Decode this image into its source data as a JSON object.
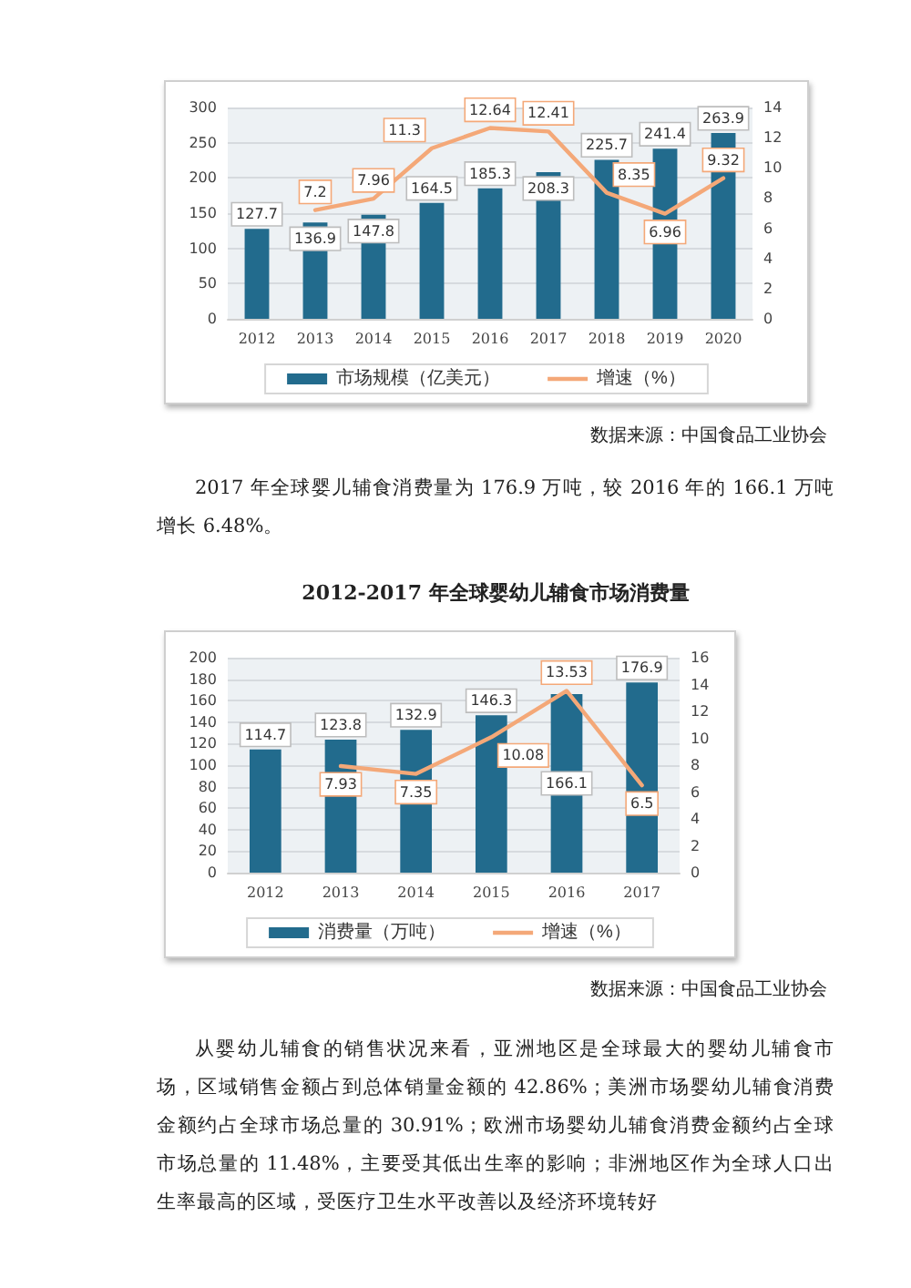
{
  "chart_data": [
    {
      "type": "bar",
      "categories": [
        "2012",
        "2013",
        "2014",
        "2015",
        "2016",
        "2017",
        "2018",
        "2019",
        "2020"
      ],
      "series": [
        {
          "name": "市场规模（亿美元）",
          "color": "#226b8d",
          "values": [
            127.7,
            136.9,
            147.8,
            164.5,
            185.3,
            208.3,
            225.7,
            241.4,
            263.9
          ]
        },
        {
          "name": "增速（%）",
          "type": "line",
          "axis": "y2",
          "color": "#f4a878",
          "values": [
            null,
            7.2,
            7.96,
            11.3,
            12.64,
            12.41,
            8.35,
            6.96,
            9.32
          ]
        }
      ],
      "ylim": [
        0,
        300
      ],
      "yticks": [
        0,
        50,
        100,
        150,
        200,
        250,
        300
      ],
      "y2lim": [
        0,
        14
      ],
      "y2ticks": [
        0,
        2,
        4,
        6,
        8,
        10,
        12,
        14
      ],
      "grid": "y",
      "legend": "bottom",
      "marker": "none",
      "data_labels": true,
      "annotations": [
        "数据来源：中国食品工业协会"
      ]
    },
    {
      "type": "other",
      "annotations": [
        "2017 年全球婴儿辅食消费量为 176.9 万吨，较 2016 年的 166.1 万吨增长 6.48%。"
      ]
    },
    {
      "type": "bar",
      "title": "2012-2017 年全球婴幼儿辅食市场消费量",
      "categories": [
        "2012",
        "2013",
        "2014",
        "2015",
        "2016",
        "2017"
      ],
      "series": [
        {
          "name": "消费量（万吨）",
          "color": "#226b8d",
          "values": [
            114.7,
            123.8,
            132.9,
            146.3,
            166.1,
            176.9
          ]
        },
        {
          "name": "增速（%）",
          "type": "line",
          "axis": "y2",
          "color": "#f4a878",
          "values": [
            null,
            7.93,
            7.35,
            10.08,
            13.53,
            6.5
          ]
        }
      ],
      "ylim": [
        0,
        200
      ],
      "yticks": [
        0,
        20,
        40,
        60,
        80,
        100,
        120,
        140,
        160,
        180,
        200
      ],
      "y2lim": [
        0,
        16
      ],
      "y2ticks": [
        0,
        2,
        4,
        6,
        8,
        10,
        12,
        14,
        16
      ],
      "grid": "y",
      "legend": "bottom",
      "marker": "none",
      "data_labels": true,
      "annotations": [
        "数据来源：中国食品工业协会"
      ]
    },
    {
      "type": "other",
      "annotations": [
        "从婴幼儿辅食的销售状况来看，亚洲地区是全球最大的婴幼儿辅食市场，区域销售金额占到总体销量金额的 42.86%；美洲市场婴幼儿辅食消费金额约占全球市场总量的 30.91%；欧洲市场婴幼儿辅食消费金额约占全球市场总量的 11.48%，主要受其低出生率的影响；非洲地区作为全球人口出生率最高的区域，受医疗卫生水平改善以及经济环境转好"
      ]
    }
  ]
}
